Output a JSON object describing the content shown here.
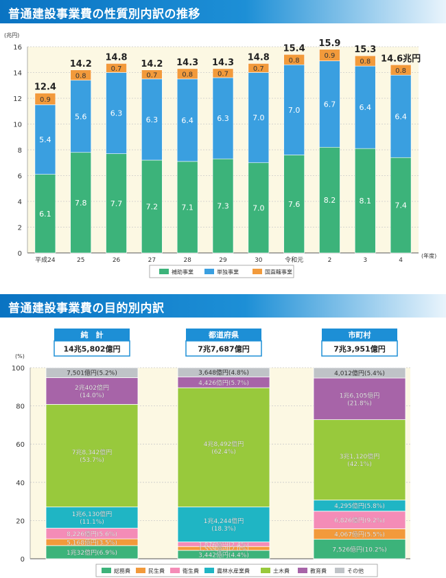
{
  "section1": {
    "title": "普通建設事業費の性質別内訳の推移"
  },
  "section2": {
    "title": "普通建設事業費の目的別内訳"
  },
  "chart_data": [
    {
      "type": "bar",
      "stacked": true,
      "y_unit_label": "(兆円)",
      "x_unit_label": "(年度)",
      "ylim": [
        0,
        16
      ],
      "yticks": [
        0,
        2,
        4,
        6,
        8,
        10,
        12,
        14,
        16
      ],
      "categories": [
        "平成24",
        "25",
        "26",
        "27",
        "28",
        "29",
        "30",
        "令和元",
        "2",
        "3",
        "4"
      ],
      "totals": [
        "12.4",
        "14.2",
        "14.8",
        "14.2",
        "14.3",
        "14.3",
        "14.8",
        "15.4",
        "15.9",
        "15.3",
        "14.6兆円"
      ],
      "series": [
        {
          "name": "補助事業",
          "color": "#3cb37a",
          "values": [
            6.1,
            7.8,
            7.7,
            7.2,
            7.1,
            7.3,
            7.0,
            7.6,
            8.2,
            8.1,
            7.4
          ],
          "labels": [
            "6.1",
            "7.8",
            "7.7",
            "7.2",
            "7.1",
            "7.3",
            "7.0",
            "7.6",
            "8.2",
            "8.1",
            "7.4"
          ]
        },
        {
          "name": "単独事業",
          "color": "#3a9fe0",
          "values": [
            5.4,
            5.6,
            6.3,
            6.3,
            6.4,
            6.3,
            7.0,
            7.0,
            6.7,
            6.4,
            6.4
          ],
          "labels": [
            "5.4",
            "5.6",
            "6.3",
            "6.3",
            "6.4",
            "6.3",
            "7.0",
            "7.0",
            "6.7",
            "6.4",
            "6.4"
          ]
        },
        {
          "name": "国直轄事業",
          "color": "#f29a3b",
          "values": [
            0.9,
            0.8,
            0.7,
            0.7,
            0.8,
            0.7,
            0.7,
            0.8,
            0.9,
            0.8,
            0.8
          ],
          "labels": [
            "0.9",
            "0.8",
            "0.7",
            "0.7",
            "0.8",
            "0.7",
            "0.7",
            "0.8",
            "0.9",
            "0.8",
            "0.8"
          ]
        }
      ],
      "grid": "dashed"
    },
    {
      "type": "bar",
      "stacked": true,
      "percent": true,
      "y_unit_label": "(%)",
      "ylim": [
        0,
        100
      ],
      "yticks": [
        0,
        20,
        40,
        60,
        80,
        100
      ],
      "categories": [
        "純　計",
        "都道府県",
        "市町村"
      ],
      "totals": [
        "14兆5,802億円",
        "7兆7,687億円",
        "7兆3,951億円"
      ],
      "series": [
        {
          "name": "総務費",
          "color": "#3cb37a",
          "values": [
            6.9,
            4.4,
            10.2
          ],
          "labels": [
            [
              "1兆32億円(6.9%)"
            ],
            [
              "3,442億円(4.4%)"
            ],
            [
              "7,526億円(10.2%)"
            ]
          ]
        },
        {
          "name": "民生費",
          "color": "#f29a3b",
          "values": [
            3.5,
            2.0,
            5.5
          ],
          "labels": [
            [
              "5,168億円(3.5%)"
            ],
            [
              "1,559億円(2.0%)"
            ],
            [
              "4,067億円(5.5%)"
            ]
          ]
        },
        {
          "name": "衛生費",
          "color": "#f48cb7",
          "values": [
            5.6,
            2.4,
            9.2
          ],
          "labels": [
            [
              "8,226億円(5.6%)"
            ],
            [
              "1,876億円(2.4%)"
            ],
            [
              "6,826億円(9.2%)"
            ]
          ]
        },
        {
          "name": "農林水産業費",
          "color": "#1fb5c4",
          "values": [
            11.1,
            18.3,
            5.8
          ],
          "labels": [
            [
              "1兆6,130億円",
              "(11.1%)"
            ],
            [
              "1兆4,244億円",
              "(18.3%)"
            ],
            [
              "4,295億円(5.8%)"
            ]
          ]
        },
        {
          "name": "土木費",
          "color": "#98c93c",
          "values": [
            53.7,
            62.4,
            42.1
          ],
          "labels": [
            [
              "7兆8,342億円",
              "(53.7%)"
            ],
            [
              "4兆8,492億円",
              "(62.4%)"
            ],
            [
              "3兆1,120億円",
              "(42.1%)"
            ]
          ]
        },
        {
          "name": "教育費",
          "color": "#a764a8",
          "values": [
            14.0,
            5.7,
            21.8
          ],
          "labels": [
            [
              "2兆402億円",
              "(14.0%)"
            ],
            [
              "4,426億円(5.7%)"
            ],
            [
              "1兆6,105億円",
              "(21.8%)"
            ]
          ]
        },
        {
          "name": "その他",
          "color": "#bfc3c7",
          "values": [
            5.2,
            4.8,
            5.4
          ],
          "labels": [
            [
              "7,501億円(5.2%)"
            ],
            [
              "3,648億円(4.8%)"
            ],
            [
              "4,012億円(5.4%)"
            ]
          ]
        }
      ],
      "grid": "dashed"
    }
  ]
}
